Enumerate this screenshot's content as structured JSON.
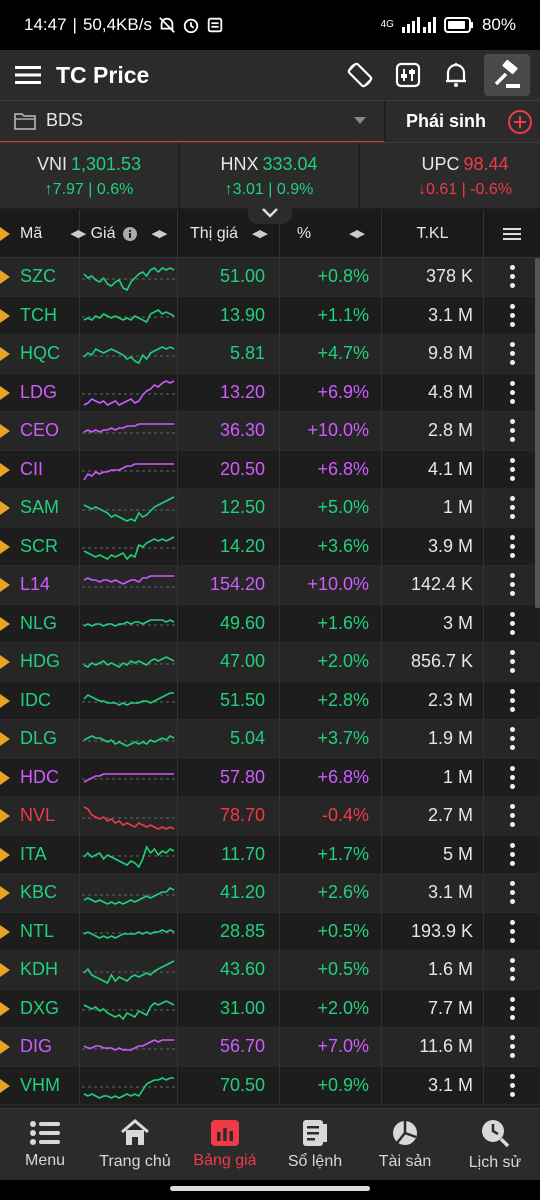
{
  "status_bar": {
    "time": "14:47",
    "net_speed": "50,4KB/s",
    "network": "4G",
    "battery": "80%"
  },
  "header": {
    "title": "TC Price"
  },
  "watchlist": {
    "name": "BDS",
    "derivatives_tab": "Phái sinh"
  },
  "indexes": [
    {
      "name": "VNI",
      "value": "1,301.53",
      "change": "7.97 | 0.6%",
      "trend": "up"
    },
    {
      "name": "HNX",
      "value": "333.04",
      "change": "3.01 | 0.9%",
      "trend": "up"
    },
    {
      "name": "UPC",
      "value": "98.44",
      "change": "0.61 | -0.6%",
      "trend": "down"
    }
  ],
  "table": {
    "headers": {
      "symbol": "Mã",
      "price": "Giá",
      "market_price": "Thị giá",
      "percent": "%",
      "volume": "T.KL"
    },
    "rows": [
      {
        "symbol": "SZC",
        "price": "51.00",
        "pct": "+0.8%",
        "vol": "378 K",
        "color": "#1fd17d",
        "spark": [
          5,
          7,
          6,
          8,
          9,
          7,
          10,
          11,
          9,
          8,
          12,
          13,
          9,
          7,
          5,
          4,
          6,
          3,
          2,
          4,
          2,
          3,
          2,
          3
        ]
      },
      {
        "symbol": "TCH",
        "price": "13.90",
        "pct": "+1.1%",
        "vol": "3.1 M",
        "color": "#1fd17d",
        "spark": [
          9,
          8,
          9,
          7,
          8,
          6,
          7,
          8,
          7,
          8,
          9,
          8,
          9,
          7,
          8,
          9,
          10,
          6,
          5,
          4,
          6,
          5,
          6,
          7
        ]
      },
      {
        "symbol": "HQC",
        "price": "5.81",
        "pct": "+4.7%",
        "vol": "9.8 M",
        "color": "#1fd17d",
        "spark": [
          8,
          6,
          7,
          4,
          5,
          6,
          5,
          4,
          5,
          6,
          7,
          9,
          8,
          10,
          11,
          7,
          9,
          6,
          5,
          4,
          3,
          4,
          3,
          4
        ]
      },
      {
        "symbol": "LDG",
        "price": "13.20",
        "pct": "+6.9%",
        "vol": "4.8 M",
        "color": "#d05bff",
        "spark": [
          13,
          12,
          10,
          11,
          12,
          11,
          13,
          12,
          11,
          13,
          12,
          11,
          10,
          12,
          11,
          8,
          6,
          5,
          3,
          4,
          2,
          1,
          2,
          1
        ]
      },
      {
        "symbol": "CEO",
        "price": "36.30",
        "pct": "+10.0%",
        "vol": "2.8 M",
        "color": "#d05bff",
        "spark": [
          7,
          6,
          7,
          6,
          7,
          6,
          6,
          5,
          6,
          5,
          5,
          4,
          4,
          4,
          3,
          3,
          3,
          3,
          3,
          3,
          3,
          3,
          3,
          3
        ]
      },
      {
        "symbol": "CII",
        "price": "20.50",
        "pct": "+6.8%",
        "vol": "4.1 M",
        "color": "#d05bff",
        "spark": [
          12,
          9,
          10,
          8,
          9,
          8,
          8,
          7,
          7,
          7,
          6,
          5,
          5,
          4,
          4,
          4,
          4,
          4,
          4,
          4,
          4,
          4,
          4,
          4
        ]
      },
      {
        "symbol": "SAM",
        "price": "12.50",
        "pct": "+5.0%",
        "vol": "1 M",
        "color": "#1fd17d",
        "spark": [
          5,
          6,
          7,
          6,
          7,
          8,
          9,
          11,
          10,
          11,
          12,
          13,
          12,
          13,
          9,
          11,
          10,
          8,
          6,
          5,
          4,
          3,
          2,
          1
        ]
      },
      {
        "symbol": "SCR",
        "price": "14.20",
        "pct": "+3.6%",
        "vol": "3.9 M",
        "color": "#1fd17d",
        "spark": [
          9,
          10,
          11,
          12,
          11,
          12,
          13,
          11,
          12,
          11,
          10,
          13,
          11,
          12,
          6,
          7,
          5,
          4,
          3,
          4,
          3,
          4,
          3,
          2
        ]
      },
      {
        "symbol": "L14",
        "price": "154.20",
        "pct": "+10.0%",
        "vol": "142.4 K",
        "color": "#d05bff",
        "spark": [
          4,
          3,
          4,
          4,
          5,
          4,
          4,
          5,
          4,
          5,
          6,
          5,
          4,
          4,
          5,
          3,
          3,
          2,
          2,
          2,
          2,
          2,
          2,
          2
        ]
      },
      {
        "symbol": "NLG",
        "price": "49.60",
        "pct": "+1.6%",
        "vol": "3 M",
        "color": "#1fd17d",
        "spark": [
          8,
          7,
          8,
          7,
          7,
          8,
          7,
          7,
          8,
          7,
          7,
          6,
          7,
          6,
          6,
          7,
          6,
          5,
          5,
          5,
          5,
          6,
          5,
          6
        ]
      },
      {
        "symbol": "HDG",
        "price": "47.00",
        "pct": "+2.0%",
        "vol": "856.7 K",
        "color": "#1fd17d",
        "spark": [
          8,
          9,
          7,
          8,
          7,
          6,
          8,
          7,
          8,
          9,
          7,
          8,
          6,
          7,
          6,
          7,
          8,
          6,
          5,
          6,
          5,
          4,
          5,
          6
        ]
      },
      {
        "symbol": "IDC",
        "price": "51.50",
        "pct": "+2.8%",
        "vol": "2.3 M",
        "color": "#1fd17d",
        "spark": [
          6,
          4,
          5,
          6,
          7,
          7,
          8,
          8,
          8,
          9,
          8,
          9,
          8,
          8,
          8,
          7,
          7,
          8,
          7,
          6,
          5,
          4,
          3,
          3
        ]
      },
      {
        "symbol": "DLG",
        "price": "5.04",
        "pct": "+3.7%",
        "vol": "1.9 M",
        "color": "#1fd17d",
        "spark": [
          7,
          6,
          5,
          6,
          6,
          7,
          8,
          7,
          9,
          8,
          9,
          10,
          9,
          8,
          9,
          8,
          9,
          7,
          8,
          7,
          6,
          7,
          5,
          6
        ]
      },
      {
        "symbol": "HDC",
        "price": "57.80",
        "pct": "+6.8%",
        "vol": "1 M",
        "color": "#d05bff",
        "spark": [
          9,
          8,
          7,
          6,
          6,
          5,
          5,
          5,
          5,
          5,
          5,
          5,
          5,
          5,
          5,
          5,
          5,
          5,
          5,
          5,
          5,
          5,
          5,
          5
        ]
      },
      {
        "symbol": "NVL",
        "price": "78.70",
        "pct": "-0.4%",
        "vol": "2.7 M",
        "color": "#f03a47",
        "spark": [
          2,
          3,
          6,
          7,
          8,
          7,
          9,
          8,
          10,
          9,
          11,
          10,
          11,
          12,
          10,
          11,
          12,
          11,
          12,
          13,
          12,
          13,
          12,
          13
        ]
      },
      {
        "symbol": "ITA",
        "price": "11.70",
        "pct": "+1.7%",
        "vol": "5 M",
        "color": "#1fd17d",
        "spark": [
          8,
          6,
          8,
          7,
          6,
          9,
          7,
          8,
          9,
          10,
          11,
          12,
          10,
          11,
          13,
          9,
          3,
          6,
          4,
          7,
          5,
          6,
          4,
          5
        ]
      },
      {
        "symbol": "KBC",
        "price": "41.20",
        "pct": "+2.6%",
        "vol": "3.1 M",
        "color": "#1fd17d",
        "spark": [
          10,
          9,
          10,
          11,
          10,
          11,
          12,
          11,
          12,
          11,
          12,
          11,
          10,
          11,
          10,
          9,
          8,
          9,
          8,
          7,
          6,
          6,
          4,
          5
        ]
      },
      {
        "symbol": "NTL",
        "price": "28.85",
        "pct": "+0.5%",
        "vol": "193.9 K",
        "color": "#1fd17d",
        "spark": [
          8,
          7,
          8,
          9,
          10,
          9,
          10,
          9,
          10,
          9,
          8,
          8,
          8,
          8,
          7,
          8,
          7,
          8,
          7,
          7,
          6,
          7,
          6,
          7
        ]
      },
      {
        "symbol": "KDH",
        "price": "43.60",
        "pct": "+0.5%",
        "vol": "1.6 M",
        "color": "#1fd17d",
        "spark": [
          8,
          6,
          9,
          10,
          11,
          12,
          13,
          9,
          12,
          10,
          11,
          12,
          10,
          9,
          10,
          9,
          8,
          9,
          7,
          6,
          5,
          4,
          3,
          2
        ]
      },
      {
        "symbol": "DXG",
        "price": "31.00",
        "pct": "+2.0%",
        "vol": "7.7 M",
        "color": "#1fd17d",
        "spark": [
          5,
          6,
          7,
          6,
          8,
          7,
          9,
          10,
          11,
          10,
          12,
          9,
          10,
          11,
          8,
          9,
          10,
          6,
          4,
          5,
          4,
          3,
          4,
          5
        ]
      },
      {
        "symbol": "DIG",
        "price": "56.70",
        "pct": "+7.0%",
        "vol": "11.6 M",
        "color": "#d05bff",
        "spark": [
          6,
          7,
          7,
          6,
          6,
          7,
          7,
          7,
          8,
          7,
          8,
          8,
          8,
          7,
          6,
          6,
          5,
          4,
          3,
          4,
          3,
          3,
          3,
          3
        ]
      },
      {
        "symbol": "VHM",
        "price": "70.50",
        "pct": "+0.9%",
        "vol": "3.1 M",
        "color": "#1fd17d",
        "spark": [
          11,
          12,
          11,
          12,
          13,
          12,
          12,
          13,
          12,
          13,
          12,
          11,
          12,
          11,
          12,
          9,
          6,
          5,
          4,
          4,
          3,
          4,
          3,
          3
        ]
      }
    ]
  },
  "bottom_nav": [
    {
      "label": "Menu",
      "icon": "list-icon"
    },
    {
      "label": "Trang chủ",
      "icon": "home-icon"
    },
    {
      "label": "Bảng giá",
      "icon": "price-board-icon",
      "active": true
    },
    {
      "label": "Sổ lệnh",
      "icon": "order-book-icon"
    },
    {
      "label": "Tài sản",
      "icon": "pie-chart-icon"
    },
    {
      "label": "Lịch sử",
      "icon": "history-icon"
    }
  ]
}
